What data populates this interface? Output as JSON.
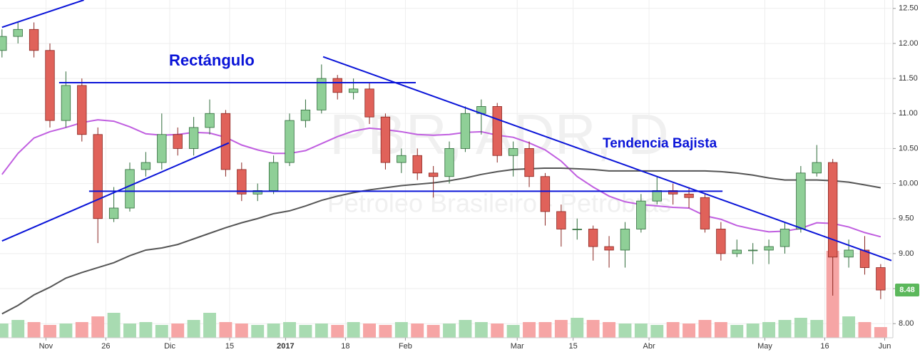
{
  "chart_data": {
    "type": "candlestick",
    "watermark": [
      "PBR, ADR, D",
      "Petroleo Brasileiro - Petrobras"
    ],
    "annotations": [
      "Rectángulo",
      "Tendencia Bajista"
    ],
    "x": [
      0,
      4,
      8,
      12,
      16,
      20,
      24,
      28,
      32,
      36,
      40,
      44,
      48,
      52,
      56,
      60,
      64,
      68,
      72,
      76,
      80,
      84,
      88,
      92,
      96,
      100,
      104,
      108,
      112,
      116,
      120,
      124,
      128,
      132,
      136,
      140,
      144,
      148,
      152,
      156,
      160,
      164,
      168,
      172,
      176,
      180,
      184,
      188,
      192,
      196,
      200,
      204,
      208,
      212,
      216,
      220
    ],
    "open": [
      11.9,
      12.1,
      12.2,
      11.9,
      10.9,
      11.4,
      10.7,
      9.5,
      9.65,
      10.2,
      10.3,
      10.7,
      10.5,
      10.8,
      11.0,
      10.2,
      9.85,
      9.9,
      10.3,
      10.9,
      11.05,
      11.5,
      11.3,
      11.35,
      10.95,
      10.3,
      10.4,
      10.15,
      10.1,
      10.5,
      11.0,
      11.1,
      10.4,
      10.5,
      10.1,
      9.6,
      9.35,
      9.35,
      9.1,
      9.05,
      9.35,
      9.75,
      9.9,
      9.85,
      9.8,
      9.35,
      9.0,
      9.05,
      9.05,
      9.1,
      9.35,
      10.15,
      10.3,
      8.95,
      9.05,
      8.8
    ],
    "high": [
      12.2,
      12.3,
      12.3,
      12.0,
      11.6,
      11.5,
      10.8,
      9.95,
      10.3,
      10.45,
      11.0,
      10.8,
      10.95,
      11.2,
      11.05,
      10.3,
      10.0,
      10.4,
      11.0,
      11.2,
      11.7,
      11.55,
      11.5,
      11.45,
      11.0,
      10.5,
      10.5,
      10.25,
      10.6,
      11.1,
      11.2,
      11.15,
      10.6,
      10.6,
      10.15,
      9.7,
      9.5,
      9.4,
      9.25,
      9.45,
      9.85,
      10.1,
      10.0,
      9.95,
      9.85,
      9.45,
      9.2,
      9.15,
      9.2,
      9.45,
      10.25,
      10.55,
      10.35,
      9.2,
      9.25,
      8.85
    ],
    "low": [
      11.8,
      12.0,
      11.8,
      10.8,
      10.8,
      10.6,
      9.15,
      9.45,
      9.6,
      10.1,
      10.2,
      10.4,
      10.4,
      10.7,
      10.1,
      9.75,
      9.75,
      9.85,
      10.25,
      10.8,
      11.0,
      11.2,
      11.2,
      10.85,
      10.2,
      10.15,
      10.05,
      9.8,
      10.0,
      10.45,
      10.7,
      10.3,
      10.1,
      9.95,
      9.4,
      9.1,
      9.2,
      8.9,
      8.8,
      8.8,
      9.3,
      9.7,
      9.7,
      9.65,
      9.3,
      8.9,
      8.95,
      8.85,
      8.85,
      9.0,
      9.3,
      10.1,
      8.4,
      8.8,
      8.7,
      8.35
    ],
    "close": [
      12.1,
      12.2,
      11.9,
      10.9,
      11.4,
      10.7,
      9.5,
      9.65,
      10.2,
      10.3,
      10.7,
      10.5,
      10.8,
      11.0,
      10.2,
      9.85,
      9.9,
      10.3,
      10.9,
      11.05,
      11.5,
      11.3,
      11.35,
      10.95,
      10.3,
      10.4,
      10.15,
      10.1,
      10.5,
      11.0,
      11.1,
      10.4,
      10.5,
      10.1,
      9.6,
      9.35,
      9.35,
      9.1,
      9.05,
      9.35,
      9.75,
      9.9,
      9.85,
      9.8,
      9.35,
      9.0,
      9.05,
      9.05,
      9.1,
      9.35,
      10.15,
      10.3,
      8.95,
      9.05,
      8.8,
      8.48
    ],
    "volume": [
      20,
      25,
      22,
      18,
      20,
      22,
      30,
      35,
      20,
      22,
      18,
      20,
      25,
      35,
      22,
      20,
      18,
      20,
      22,
      18,
      20,
      18,
      22,
      20,
      18,
      22,
      20,
      18,
      20,
      25,
      22,
      20,
      18,
      22,
      22,
      25,
      28,
      25,
      22,
      20,
      20,
      18,
      22,
      20,
      25,
      22,
      18,
      20,
      22,
      25,
      28,
      25,
      122,
      30,
      22,
      15
    ],
    "up_color": "#8fcf97",
    "down_color": "#e0625a",
    "up_edge": "#2f6b3a",
    "down_edge": "#8a2520",
    "volume_up_color": "#a8dbb1",
    "volume_down_color": "#f6a5a5",
    "moving_averages": [
      {
        "color": "#c05ee0",
        "values": [
          10.13,
          10.43,
          10.65,
          10.74,
          10.8,
          10.87,
          10.91,
          10.89,
          10.81,
          10.71,
          10.69,
          10.7,
          10.73,
          10.72,
          10.66,
          10.55,
          10.48,
          10.43,
          10.43,
          10.47,
          10.57,
          10.67,
          10.75,
          10.79,
          10.77,
          10.74,
          10.7,
          10.69,
          10.7,
          10.73,
          10.74,
          10.69,
          10.66,
          10.58,
          10.48,
          10.32,
          10.1,
          9.95,
          9.82,
          9.74,
          9.7,
          9.68,
          9.66,
          9.65,
          9.54,
          9.49,
          9.4,
          9.35,
          9.31,
          9.32,
          9.36,
          9.44,
          9.43,
          9.38,
          9.3,
          9.24
        ]
      },
      {
        "color": "#555555",
        "values": [
          8.14,
          8.26,
          8.41,
          8.52,
          8.65,
          8.73,
          8.8,
          8.87,
          8.97,
          9.05,
          9.08,
          9.13,
          9.21,
          9.29,
          9.37,
          9.44,
          9.5,
          9.57,
          9.61,
          9.68,
          9.76,
          9.82,
          9.87,
          9.91,
          9.94,
          9.97,
          9.99,
          10.01,
          10.04,
          10.08,
          10.13,
          10.17,
          10.2,
          10.21,
          10.22,
          10.22,
          10.21,
          10.2,
          10.18,
          10.18,
          10.18,
          10.18,
          10.18,
          10.18,
          10.18,
          10.17,
          10.15,
          10.12,
          10.08,
          10.05,
          10.05,
          10.05,
          10.04,
          10.02,
          9.98,
          9.94
        ]
      }
    ],
    "trendlines": [
      {
        "color": "#0a14d8",
        "x": [
          14.3,
          103.6
        ],
        "y": [
          11.44,
          11.44
        ]
      },
      {
        "color": "#0a14d8",
        "x": [
          21.8,
          180.4
        ],
        "y": [
          9.89,
          9.89
        ]
      },
      {
        "color": "#0a14d8",
        "x": [
          0,
          20.5
        ],
        "y": [
          12.23,
          12.62
        ]
      },
      {
        "color": "#0a14d8",
        "x": [
          0,
          56.8
        ],
        "y": [
          9.18,
          10.58
        ]
      },
      {
        "color": "#0a14d8",
        "x": [
          80.4,
          222.7
        ],
        "y": [
          11.81,
          8.9
        ]
      }
    ],
    "xlim": [
      -0.5,
      222.7
    ],
    "ylim": [
      7.88,
      12.62
    ],
    "vlim": [
      0,
      130
    ],
    "xticks": [
      {
        "value": 11,
        "label": "Nov"
      },
      26,
      {
        "value": 42,
        "label": "Dic"
      },
      {
        "value": 57,
        "label": "15"
      },
      {
        "value": 71,
        "label": "2017"
      },
      {
        "value": 86,
        "label": "18"
      },
      {
        "value": 101,
        "label": "Feb"
      },
      {
        "value": 129,
        "label": "Mar"
      },
      {
        "value": 143,
        "label": "15"
      },
      {
        "value": 162,
        "label": "Abr"
      },
      {
        "value": 191,
        "label": "May"
      },
      {
        "value": 206,
        "label": "16"
      },
      {
        "value": 221,
        "label": "Jun"
      }
    ],
    "yticks": [
      {
        "value": 8,
        "label": "8.00"
      },
      {
        "value": 8.5,
        "label": "8.50"
      },
      {
        "value": 9,
        "label": "9.00"
      },
      {
        "value": 9.5,
        "label": "9.50"
      },
      {
        "value": 10,
        "label": "10.00"
      },
      {
        "value": 10.5,
        "label": "10.50"
      },
      {
        "value": 11,
        "label": "11.00"
      },
      {
        "value": 11.5,
        "label": "11.50"
      },
      {
        "value": 12,
        "label": "12.00"
      },
      {
        "value": 12.5,
        "label": "12.50"
      }
    ],
    "last_price": {
      "value": 8.48,
      "label": "8.48",
      "color": "#5cb85c"
    },
    "grid": true
  }
}
